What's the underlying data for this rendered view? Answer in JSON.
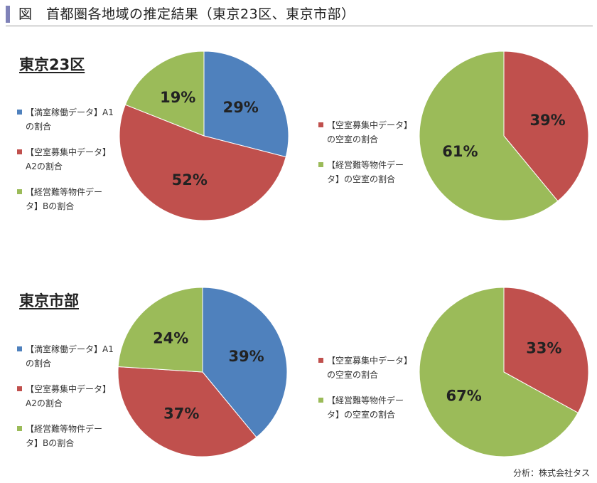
{
  "title": "図　首都圏各地域の推定結果（東京23区、東京市部）",
  "accent_color": "#7f82b8",
  "colors": {
    "blue": "#4f81bd",
    "red": "#c0504d",
    "green": "#9bbb59"
  },
  "sections": [
    {
      "label": "東京23区",
      "left_legend": [
        {
          "text": "【満室稼働データ】A1\nの割合",
          "color": "#4f81bd"
        },
        {
          "text": "【空室募集中データ】\nA2の割合",
          "color": "#c0504d"
        },
        {
          "text": "【経営難等物件デー\nタ】Bの割合",
          "color": "#9bbb59"
        }
      ],
      "right_legend": [
        {
          "text": "【空室募集中データ】\nの空室の割合",
          "color": "#c0504d"
        },
        {
          "text": "【経営難等物件デー\nタ】の空室の割合",
          "color": "#9bbb59"
        }
      ]
    },
    {
      "label": "東京市部",
      "left_legend": [
        {
          "text": "【満室稼働データ】A1\nの割合",
          "color": "#4f81bd"
        },
        {
          "text": "【空室募集中データ】\nA2の割合",
          "color": "#c0504d"
        },
        {
          "text": "【経営難等物件デー\nタ】Bの割合",
          "color": "#9bbb59"
        }
      ],
      "right_legend": [
        {
          "text": "【空室募集中データ】\nの空室の割合",
          "color": "#c0504d"
        },
        {
          "text": "【経営難等物件デー\nタ】の空室の割合",
          "color": "#9bbb59"
        }
      ]
    }
  ],
  "chart_data": [
    {
      "type": "pie",
      "values": [
        29,
        52,
        19
      ],
      "labels": [
        "29%",
        "52%",
        "19%"
      ],
      "colors": [
        "#4f81bd",
        "#c0504d",
        "#9bbb59"
      ]
    },
    {
      "type": "pie",
      "values": [
        39,
        61
      ],
      "labels": [
        "39%",
        "61%"
      ],
      "colors": [
        "#c0504d",
        "#9bbb59"
      ]
    },
    {
      "type": "pie",
      "values": [
        39,
        37,
        24
      ],
      "labels": [
        "39%",
        "37%",
        "24%"
      ],
      "colors": [
        "#4f81bd",
        "#c0504d",
        "#9bbb59"
      ]
    },
    {
      "type": "pie",
      "values": [
        33,
        67
      ],
      "labels": [
        "33%",
        "67%"
      ],
      "colors": [
        "#c0504d",
        "#9bbb59"
      ]
    }
  ],
  "source": "分析：株式会社タス"
}
